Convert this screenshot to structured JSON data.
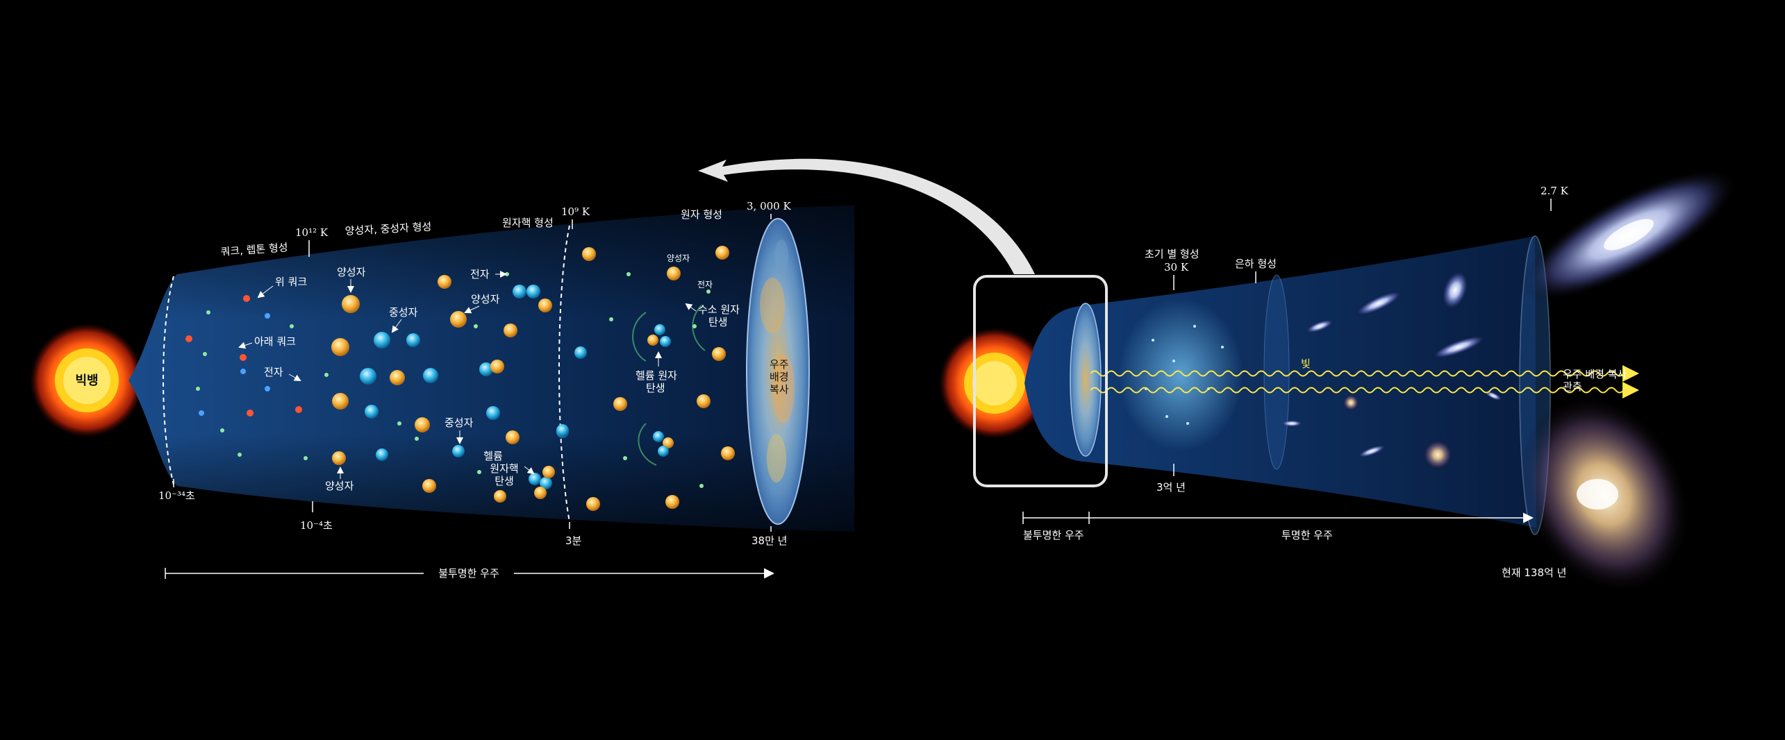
{
  "left_panel": {
    "big_bang": "빅뱅",
    "stage_labels": {
      "quark_lepton": "쿼크, 렙톤 형성",
      "proton_neutron": "양성자, 중성자 형성",
      "nucleus": "원자핵 형성",
      "atom": "원자 형성"
    },
    "temperatures": {
      "t1": "10¹² K",
      "t2": "10⁹ K",
      "t3": "3, 000 K"
    },
    "particles": {
      "up_quark": "위 쿼크",
      "down_quark": "아래 쿼크",
      "electron_1": "전자",
      "proton_1": "양성자",
      "neutron_1": "중성자",
      "proton_2": "양성자",
      "proton_3": "양성자",
      "electron_2": "전자",
      "neutron_2": "중성자",
      "helium_nucleus": [
        "헬륨",
        "원자핵",
        "탄생"
      ],
      "proton_4": "양성자",
      "electron_3": "전자",
      "hydrogen_atom": [
        "수소 원자",
        "탄생"
      ],
      "helium_atom": [
        "헬륨 원자",
        "탄생"
      ],
      "cmb": [
        "우주",
        "배경",
        "복사"
      ]
    },
    "times": {
      "t1": "10⁻³⁴초",
      "t2": "10⁻⁴초",
      "t3": "3분",
      "t4": "38만 년"
    },
    "span_label": "불투명한 우주"
  },
  "right_panel": {
    "early_star": [
      "초기 별 형성",
      "30 K"
    ],
    "galaxy": "은하 형성",
    "temp_now": "2.7 K",
    "light": "빛",
    "cmb_observe": [
      "우주 배경 복사",
      "관측"
    ],
    "time_300m": "3억 년",
    "opaque": "불투명한 우주",
    "transparent": "투명한 우주",
    "now": "현재 138억 년"
  },
  "colors": {
    "tube": "#0b2a55",
    "proton": "#f6b23a",
    "neutron": "#2fb6e8",
    "light_wave": "#ffe94a"
  }
}
